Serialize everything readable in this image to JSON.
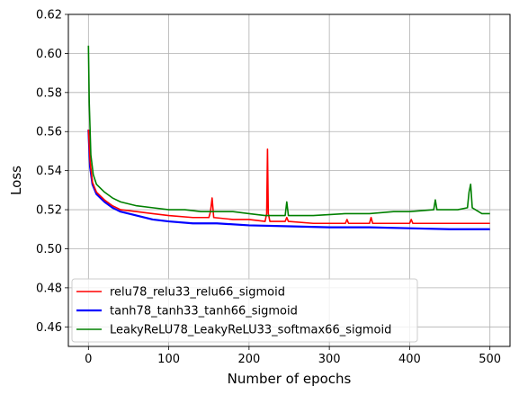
{
  "chart_data": {
    "type": "line",
    "title": "",
    "xlabel": "Number of epochs",
    "ylabel": "Loss",
    "xlim": [
      -25,
      525
    ],
    "ylim": [
      0.45,
      0.62
    ],
    "xticks": [
      0,
      100,
      200,
      300,
      400,
      500
    ],
    "yticks": [
      0.46,
      0.48,
      0.5,
      0.52,
      0.54,
      0.56,
      0.58,
      0.6,
      0.62
    ],
    "grid": true,
    "legend_position": "lower-left",
    "series": [
      {
        "name": "relu78_relu33_relu66_sigmoid",
        "color": "#ff0000",
        "points": [
          [
            0,
            0.561
          ],
          [
            2,
            0.545
          ],
          [
            5,
            0.534
          ],
          [
            10,
            0.529
          ],
          [
            20,
            0.525
          ],
          [
            30,
            0.522
          ],
          [
            40,
            0.52
          ],
          [
            60,
            0.519
          ],
          [
            80,
            0.518
          ],
          [
            100,
            0.517
          ],
          [
            130,
            0.516
          ],
          [
            150,
            0.516
          ],
          [
            152,
            0.519
          ],
          [
            154,
            0.526
          ],
          [
            156,
            0.516
          ],
          [
            180,
            0.515
          ],
          [
            200,
            0.515
          ],
          [
            220,
            0.514
          ],
          [
            222,
            0.518
          ],
          [
            223,
            0.551
          ],
          [
            224,
            0.518
          ],
          [
            226,
            0.514
          ],
          [
            245,
            0.514
          ],
          [
            247,
            0.516
          ],
          [
            249,
            0.514
          ],
          [
            280,
            0.513
          ],
          [
            320,
            0.513
          ],
          [
            322,
            0.515
          ],
          [
            324,
            0.513
          ],
          [
            350,
            0.513
          ],
          [
            352,
            0.516
          ],
          [
            354,
            0.513
          ],
          [
            400,
            0.513
          ],
          [
            402,
            0.515
          ],
          [
            404,
            0.513
          ],
          [
            450,
            0.513
          ],
          [
            500,
            0.513
          ]
        ]
      },
      {
        "name": "tanh78_tanh33_tanh66_sigmoid",
        "color": "#0000ff",
        "points": [
          [
            0,
            0.561
          ],
          [
            2,
            0.542
          ],
          [
            5,
            0.533
          ],
          [
            10,
            0.528
          ],
          [
            20,
            0.524
          ],
          [
            30,
            0.521
          ],
          [
            40,
            0.519
          ],
          [
            60,
            0.517
          ],
          [
            80,
            0.515
          ],
          [
            100,
            0.514
          ],
          [
            130,
            0.513
          ],
          [
            160,
            0.513
          ],
          [
            200,
            0.512
          ],
          [
            250,
            0.5115
          ],
          [
            300,
            0.511
          ],
          [
            350,
            0.511
          ],
          [
            400,
            0.5105
          ],
          [
            450,
            0.51
          ],
          [
            500,
            0.51
          ]
        ]
      },
      {
        "name": "LeakyReLU78_LeakyReLU33_softmax66_sigmoid",
        "color": "#008000",
        "points": [
          [
            0,
            0.604
          ],
          [
            1,
            0.575
          ],
          [
            3,
            0.548
          ],
          [
            6,
            0.538
          ],
          [
            10,
            0.533
          ],
          [
            20,
            0.529
          ],
          [
            30,
            0.526
          ],
          [
            40,
            0.524
          ],
          [
            60,
            0.522
          ],
          [
            80,
            0.521
          ],
          [
            100,
            0.52
          ],
          [
            120,
            0.52
          ],
          [
            140,
            0.519
          ],
          [
            180,
            0.519
          ],
          [
            200,
            0.518
          ],
          [
            220,
            0.517
          ],
          [
            245,
            0.517
          ],
          [
            247,
            0.524
          ],
          [
            249,
            0.517
          ],
          [
            280,
            0.517
          ],
          [
            320,
            0.518
          ],
          [
            350,
            0.518
          ],
          [
            380,
            0.519
          ],
          [
            400,
            0.519
          ],
          [
            430,
            0.52
          ],
          [
            432,
            0.525
          ],
          [
            434,
            0.52
          ],
          [
            460,
            0.52
          ],
          [
            472,
            0.521
          ],
          [
            474,
            0.529
          ],
          [
            476,
            0.533
          ],
          [
            478,
            0.521
          ],
          [
            490,
            0.518
          ],
          [
            500,
            0.518
          ]
        ]
      }
    ]
  }
}
